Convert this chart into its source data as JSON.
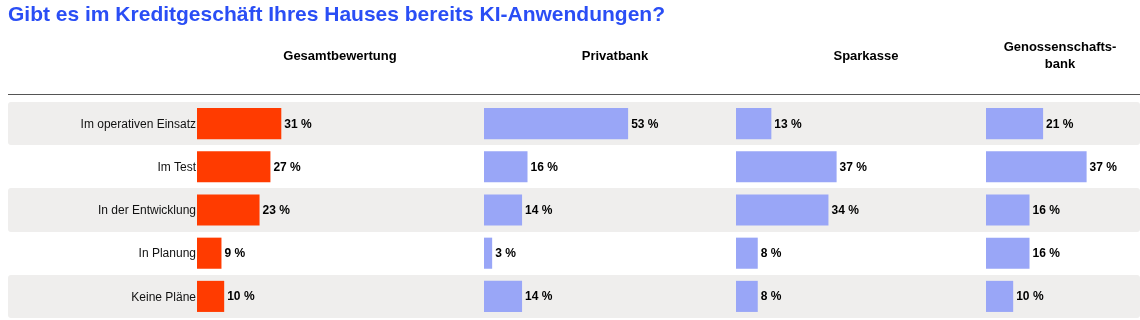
{
  "chart_data": [
    {
      "type": "bar",
      "orientation": "horizontal",
      "title": "Gibt es im Kreditgeschäft Ihres Hauses bereits KI-Anwendungen?",
      "subtitle": "Gesamtbewertung",
      "categories": [
        "Im operativen Einsatz",
        "Im Test",
        "In der Entwicklung",
        "In Planung",
        "Keine Pläne"
      ],
      "values": [
        31,
        27,
        23,
        9,
        10
      ],
      "value_labels": [
        "31 %",
        "27 %",
        "23 %",
        "9 %",
        "10 %"
      ],
      "color": "#ff3b00",
      "tick_labels": "y",
      "grid": false
    },
    {
      "type": "bar",
      "orientation": "horizontal",
      "title": "Privatbank",
      "categories": [
        null,
        null,
        null,
        null,
        null
      ],
      "values": [
        53,
        16,
        14,
        3,
        14
      ],
      "value_labels": [
        "53 %",
        "16 %",
        "14 %",
        "3 %",
        "14 %"
      ],
      "color": "#99a6f7",
      "tick_labels": false,
      "grid": false
    },
    {
      "type": "bar",
      "orientation": "horizontal",
      "title": "Sparkasse",
      "categories": [
        null,
        null,
        null,
        null,
        null
      ],
      "values": [
        13,
        37,
        34,
        8,
        8
      ],
      "value_labels": [
        "13 %",
        "37 %",
        "34 %",
        "8 %",
        "8 %"
      ],
      "color": "#99a6f7",
      "tick_labels": false,
      "grid": false
    },
    {
      "type": "bar",
      "orientation": "horizontal",
      "title": "Genossenschafts-bank",
      "categories": [
        null,
        null,
        null,
        null,
        null
      ],
      "values": [
        21,
        37,
        16,
        16,
        10
      ],
      "value_labels": [
        "21 %",
        "37 %",
        "16 %",
        "16 %",
        "10 %"
      ],
      "color": "#99a6f7",
      "tick_labels": false,
      "grid": false
    }
  ]
}
